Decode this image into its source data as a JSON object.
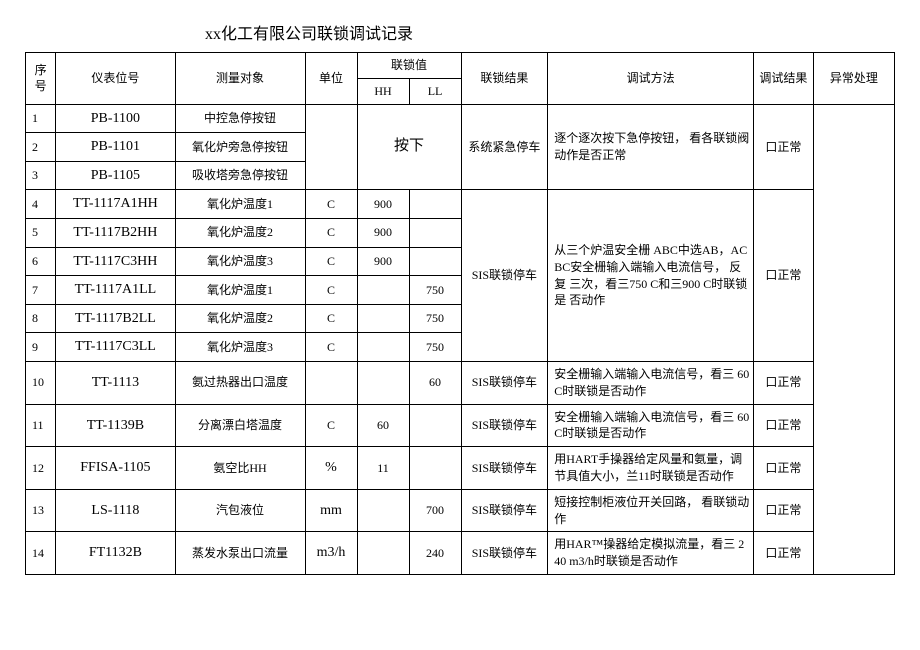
{
  "title": "xx化工有限公司联锁调试记录",
  "head": {
    "seq": "序号",
    "tag": "仪表位号",
    "obj": "测量对象",
    "unit": "单位",
    "link": "联锁值",
    "hh": "HH",
    "ll": "LL",
    "result": "联锁结果",
    "method": "调试方法",
    "tresult": "调试结果",
    "exc": "异常处理"
  },
  "g1": {
    "r1": {
      "n": "1",
      "tag": "PB-1100",
      "obj": "中控急停按钮"
    },
    "r2": {
      "n": "2",
      "tag": "PB-1101",
      "obj": "氧化炉旁急停按钮"
    },
    "r3": {
      "n": "3",
      "tag": "PB-1105",
      "obj": "吸收塔旁急停按钮"
    },
    "press": "按下",
    "res": "系统紧急停车",
    "method": "逐个逐次按下急停按钮， 看各联锁阀动作是否正常",
    "tres": "口正常"
  },
  "g2": {
    "r4": {
      "n": "4",
      "tag": "TT-1117A1HH",
      "obj": "氧化炉温度1",
      "unit": "C",
      "hh": "900"
    },
    "r5": {
      "n": "5",
      "tag": "TT-1117B2HH",
      "obj": "氧化炉温度2",
      "unit": "C",
      "hh": "900"
    },
    "r6": {
      "n": "6",
      "tag": "TT-1117C3HH",
      "obj": "氧化炉温度3",
      "unit": "C",
      "hh": "900"
    },
    "r7": {
      "n": "7",
      "tag": "TT-1117A1LL",
      "obj": "氧化炉温度1",
      "unit": "C",
      "ll": "750"
    },
    "r8": {
      "n": "8",
      "tag": "TT-1117B2LL",
      "obj": "氧化炉温度2",
      "unit": "C",
      "ll": "750"
    },
    "r9": {
      "n": "9",
      "tag": "TT-1117C3LL",
      "obj": "氧化炉温度3",
      "unit": "C",
      "ll": "750"
    },
    "res": "SIS联锁停车",
    "method": "从三个炉温安全栅 ABC中选AB，AC BC安全栅输入端输入电流信号， 反复 三次，看三750 C和三900 C时联锁是 否动作",
    "tres": "口正常"
  },
  "r10": {
    "n": "10",
    "tag": "TT-1113",
    "obj": "氨过热器出口温度",
    "unit": "",
    "hh": "",
    "ll": "60",
    "res": "SIS联锁停车",
    "method": "安全栅输入端输入电流信号，看三    60 C时联锁是否动作",
    "tres": "口正常"
  },
  "r11": {
    "n": "11",
    "tag": "TT-1139B",
    "obj": "分离漂白塔温度",
    "unit": "C",
    "hh": "60",
    "ll": "",
    "res": "SIS联锁停车",
    "method": "安全栅输入端输入电流信号，看三    60 C时联锁是否动作",
    "tres": "口正常"
  },
  "r12": {
    "n": "12",
    "tag": "FFISA-1105",
    "obj": "氨空比HH",
    "unit": "%",
    "hh": "11",
    "ll": "",
    "res": "SIS联锁停车",
    "method": "用HART手操器给定风量和氨量，调 节具值大小，兰11时联锁是否动作",
    "tres": "口正常"
  },
  "r13": {
    "n": "13",
    "tag": "LS-1118",
    "obj": "汽包液位",
    "unit": "mm",
    "hh": "",
    "ll": "700",
    "res": "SIS联锁停车",
    "method": "短接控制柜液位开关回路， 看联锁动 作",
    "tres": "口正常"
  },
  "r14": {
    "n": "14",
    "tag": "FT1132B",
    "obj": "蒸发水泵出口流量",
    "unit": "m3/h",
    "hh": "",
    "ll": "240",
    "res": "SIS联锁停车",
    "method": "用HAR™操器给定模拟流量，看三       240 m3/h时联锁是否动作",
    "tres": "口正常"
  }
}
